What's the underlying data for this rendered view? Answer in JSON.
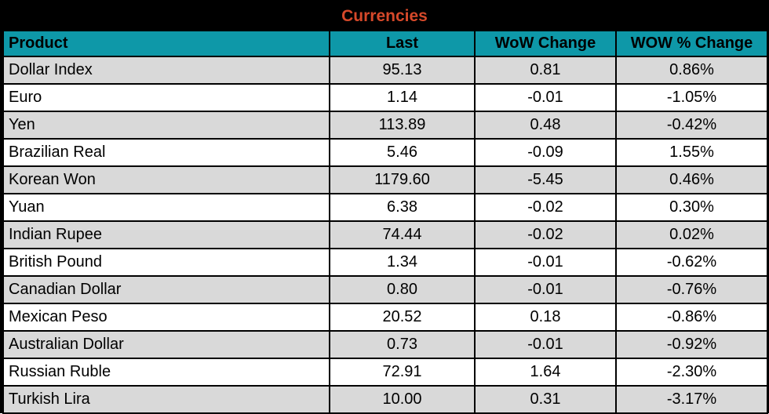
{
  "title": "Currencies",
  "colors": {
    "title_text": "#d6492a",
    "header_bg": "#0e98a8",
    "row_alt_bg": "#d9d9d9",
    "row_bg": "#ffffff",
    "frame": "#000000"
  },
  "table": {
    "columns": [
      "Product",
      "Last",
      "WoW Change",
      "WOW % Change"
    ],
    "rows": [
      {
        "product": "Dollar Index",
        "last": "95.13",
        "wow_change": "0.81",
        "wow_pct_change": "0.86%"
      },
      {
        "product": "Euro",
        "last": "1.14",
        "wow_change": "-0.01",
        "wow_pct_change": "-1.05%"
      },
      {
        "product": "Yen",
        "last": "113.89",
        "wow_change": "0.48",
        "wow_pct_change": "-0.42%"
      },
      {
        "product": "Brazilian Real",
        "last": "5.46",
        "wow_change": "-0.09",
        "wow_pct_change": "1.55%"
      },
      {
        "product": "Korean Won",
        "last": "1179.60",
        "wow_change": "-5.45",
        "wow_pct_change": "0.46%"
      },
      {
        "product": "Yuan",
        "last": "6.38",
        "wow_change": "-0.02",
        "wow_pct_change": "0.30%"
      },
      {
        "product": "Indian Rupee",
        "last": "74.44",
        "wow_change": "-0.02",
        "wow_pct_change": "0.02%"
      },
      {
        "product": "British Pound",
        "last": "1.34",
        "wow_change": "-0.01",
        "wow_pct_change": "-0.62%"
      },
      {
        "product": "Canadian Dollar",
        "last": "0.80",
        "wow_change": "-0.01",
        "wow_pct_change": "-0.76%"
      },
      {
        "product": "Mexican Peso",
        "last": "20.52",
        "wow_change": "0.18",
        "wow_pct_change": "-0.86%"
      },
      {
        "product": "Australian Dollar",
        "last": "0.73",
        "wow_change": "-0.01",
        "wow_pct_change": "-0.92%"
      },
      {
        "product": "Russian Ruble",
        "last": "72.91",
        "wow_change": "1.64",
        "wow_pct_change": "-2.30%"
      },
      {
        "product": "Turkish Lira",
        "last": "10.00",
        "wow_change": "0.31",
        "wow_pct_change": "-3.17%"
      }
    ]
  }
}
